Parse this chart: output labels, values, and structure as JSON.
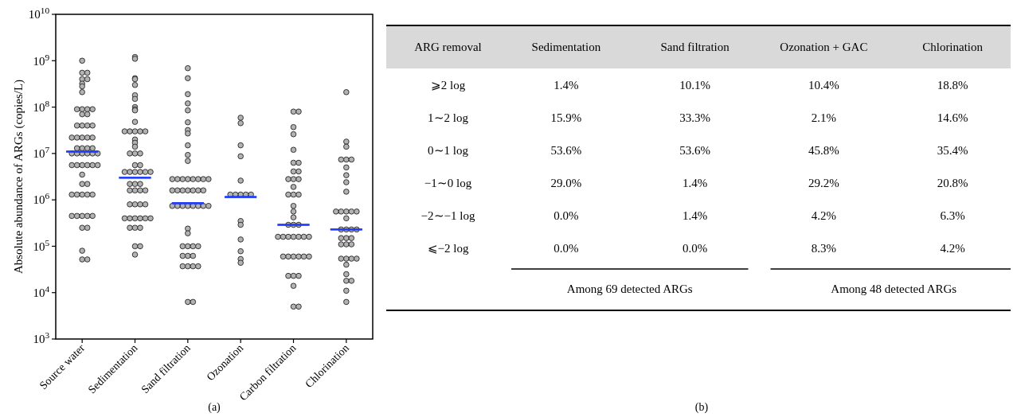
{
  "chart_data": [
    {
      "type": "scatter",
      "title": "(a)",
      "ylabel": "Absolute abundance of ARGs (copies/L)",
      "log": "y",
      "marker": "circle",
      "categories": [
        "Source water",
        "Sedimentation",
        "Sand filtration",
        "Ozonation",
        "Carbon filtration",
        "Chlorination"
      ],
      "ylim": [
        1000,
        10000000000
      ],
      "yticks": [
        {
          "value": 1000,
          "label": "10$^{3}$"
        },
        {
          "value": 10000,
          "label": "10$^{4}$"
        },
        {
          "value": 100000,
          "label": "10$^{5}$"
        },
        {
          "value": 1000000,
          "label": "10$^{6}$"
        },
        {
          "value": 10000000,
          "label": "10$^{7}$"
        },
        {
          "value": 100000000,
          "label": "10$^{8}$"
        },
        {
          "value": 1000000000,
          "label": "10$^{9}$"
        },
        {
          "value": 10000000000,
          "label": "10$^{10}$"
        }
      ],
      "series": [
        {
          "type": "scatter",
          "color": "#b3b3b3",
          "x": [
            "Source water",
            "Source water",
            "Source water",
            "Source water",
            "Source water",
            "Source water",
            "Source water",
            "Source water",
            "Source water",
            "Source water",
            "Source water",
            "Source water",
            "Source water",
            "Source water",
            "Source water",
            "Source water",
            "Source water",
            "Source water",
            "Source water",
            "Source water",
            "Source water",
            "Source water",
            "Source water",
            "Source water",
            "Source water",
            "Source water",
            "Source water",
            "Source water",
            "Source water",
            "Source water",
            "Source water",
            "Source water",
            "Source water",
            "Source water",
            "Source water",
            "Source water",
            "Source water",
            "Source water",
            "Source water",
            "Source water",
            "Source water",
            "Source water",
            "Source water",
            "Source water",
            "Source water",
            "Source water",
            "Source water",
            "Source water",
            "Source water",
            "Source water",
            "Source water",
            "Source water",
            "Source water",
            "Source water",
            "Source water",
            "Source water",
            "Source water",
            "Sedimentation",
            "Sedimentation",
            "Sedimentation",
            "Sedimentation",
            "Sedimentation",
            "Sedimentation",
            "Sedimentation",
            "Sedimentation",
            "Sedimentation",
            "Sedimentation",
            "Sedimentation",
            "Sedimentation",
            "Sedimentation",
            "Sedimentation",
            "Sedimentation",
            "Sedimentation",
            "Sedimentation",
            "Sedimentation",
            "Sedimentation",
            "Sedimentation",
            "Sedimentation",
            "Sedimentation",
            "Sedimentation",
            "Sedimentation",
            "Sedimentation",
            "Sedimentation",
            "Sedimentation",
            "Sedimentation",
            "Sedimentation",
            "Sedimentation",
            "Sedimentation",
            "Sedimentation",
            "Sedimentation",
            "Sedimentation",
            "Sedimentation",
            "Sedimentation",
            "Sedimentation",
            "Sedimentation",
            "Sedimentation",
            "Sedimentation",
            "Sedimentation",
            "Sedimentation",
            "Sedimentation",
            "Sedimentation",
            "Sedimentation",
            "Sedimentation",
            "Sedimentation",
            "Sedimentation",
            "Sedimentation",
            "Sedimentation",
            "Sedimentation",
            "Sedimentation",
            "Sedimentation",
            "Sand filtration",
            "Sand filtration",
            "Sand filtration",
            "Sand filtration",
            "Sand filtration",
            "Sand filtration",
            "Sand filtration",
            "Sand filtration",
            "Sand filtration",
            "Sand filtration",
            "Sand filtration",
            "Sand filtration",
            "Sand filtration",
            "Sand filtration",
            "Sand filtration",
            "Sand filtration",
            "Sand filtration",
            "Sand filtration",
            "Sand filtration",
            "Sand filtration",
            "Sand filtration",
            "Sand filtration",
            "Sand filtration",
            "Sand filtration",
            "Sand filtration",
            "Sand filtration",
            "Sand filtration",
            "Sand filtration",
            "Sand filtration",
            "Sand filtration",
            "Sand filtration",
            "Sand filtration",
            "Sand filtration",
            "Sand filtration",
            "Sand filtration",
            "Sand filtration",
            "Sand filtration",
            "Sand filtration",
            "Sand filtration",
            "Sand filtration",
            "Sand filtration",
            "Sand filtration",
            "Sand filtration",
            "Sand filtration",
            "Sand filtration",
            "Sand filtration",
            "Sand filtration",
            "Sand filtration",
            "Sand filtration",
            "Ozonation",
            "Ozonation",
            "Ozonation",
            "Ozonation",
            "Ozonation",
            "Ozonation",
            "Ozonation",
            "Ozonation",
            "Ozonation",
            "Ozonation",
            "Ozonation",
            "Ozonation",
            "Ozonation",
            "Ozonation",
            "Ozonation",
            "Ozonation",
            "Carbon filtration",
            "Carbon filtration",
            "Carbon filtration",
            "Carbon filtration",
            "Carbon filtration",
            "Carbon filtration",
            "Carbon filtration",
            "Carbon filtration",
            "Carbon filtration",
            "Carbon filtration",
            "Carbon filtration",
            "Carbon filtration",
            "Carbon filtration",
            "Carbon filtration",
            "Carbon filtration",
            "Carbon filtration",
            "Carbon filtration",
            "Carbon filtration",
            "Carbon filtration",
            "Carbon filtration",
            "Carbon filtration",
            "Carbon filtration",
            "Carbon filtration",
            "Carbon filtration",
            "Carbon filtration",
            "Carbon filtration",
            "Carbon filtration",
            "Carbon filtration",
            "Carbon filtration",
            "Carbon filtration",
            "Carbon filtration",
            "Carbon filtration",
            "Carbon filtration",
            "Carbon filtration",
            "Carbon filtration",
            "Carbon filtration",
            "Carbon filtration",
            "Carbon filtration",
            "Carbon filtration",
            "Carbon filtration",
            "Carbon filtration",
            "Chlorination",
            "Chlorination",
            "Chlorination",
            "Chlorination",
            "Chlorination",
            "Chlorination",
            "Chlorination",
            "Chlorination",
            "Chlorination",
            "Chlorination",
            "Chlorination",
            "Chlorination",
            "Chlorination",
            "Chlorination",
            "Chlorination",
            "Chlorination",
            "Chlorination",
            "Chlorination",
            "Chlorination",
            "Chlorination",
            "Chlorination",
            "Chlorination",
            "Chlorination",
            "Chlorination",
            "Chlorination",
            "Chlorination",
            "Chlorination",
            "Chlorination",
            "Chlorination",
            "Chlorination",
            "Chlorination",
            "Chlorination",
            "Chlorination",
            "Chlorination",
            "Chlorination",
            "Chlorination"
          ],
          "values": [
            1000000000.0,
            550000000.0,
            550000000.0,
            400000000.0,
            400000000.0,
            320000000.0,
            280000000.0,
            210000000.0,
            90000000.0,
            90000000.0,
            90000000.0,
            90000000.0,
            70000000.0,
            70000000.0,
            40000000.0,
            40000000.0,
            40000000.0,
            40000000.0,
            22000000.0,
            22000000.0,
            22000000.0,
            22000000.0,
            22000000.0,
            13000000.0,
            13000000.0,
            13000000.0,
            13000000.0,
            10000000.0,
            10000000.0,
            10000000.0,
            10000000.0,
            10000000.0,
            10000000.0,
            5600000.0,
            5600000.0,
            5600000.0,
            5600000.0,
            5600000.0,
            5600000.0,
            3500000.0,
            2200000.0,
            2200000.0,
            1300000.0,
            1300000.0,
            1300000.0,
            1300000.0,
            1300000.0,
            450000.0,
            450000.0,
            450000.0,
            450000.0,
            450000.0,
            250000.0,
            250000.0,
            80000.0,
            52000.0,
            52000.0,
            1200000000.0,
            1100000000.0,
            420000000.0,
            400000000.0,
            300000000.0,
            180000000.0,
            150000000.0,
            100000000.0,
            90000000.0,
            85000000.0,
            48000000.0,
            30000000.0,
            30000000.0,
            30000000.0,
            30000000.0,
            30000000.0,
            20000000.0,
            17000000.0,
            14000000.0,
            10000000.0,
            10000000.0,
            10000000.0,
            5600000.0,
            5600000.0,
            4000000.0,
            4000000.0,
            4000000.0,
            4000000.0,
            4000000.0,
            4000000.0,
            2200000.0,
            2200000.0,
            2200000.0,
            1600000.0,
            1600000.0,
            1600000.0,
            1600000.0,
            800000.0,
            800000.0,
            800000.0,
            800000.0,
            400000.0,
            400000.0,
            400000.0,
            400000.0,
            400000.0,
            400000.0,
            250000.0,
            250000.0,
            250000.0,
            100000.0,
            100000.0,
            66000.0,
            690000000.0,
            420000000.0,
            190000000.0,
            120000000.0,
            85000000.0,
            47000000.0,
            32000000.0,
            27000000.0,
            15000000.0,
            9300000.0,
            6900000.0,
            2800000.0,
            2800000.0,
            2800000.0,
            2800000.0,
            2800000.0,
            2800000.0,
            2800000.0,
            2800000.0,
            1600000.0,
            1600000.0,
            1600000.0,
            1600000.0,
            1600000.0,
            1600000.0,
            1600000.0,
            740000.0,
            740000.0,
            740000.0,
            740000.0,
            740000.0,
            740000.0,
            740000.0,
            740000.0,
            240000.0,
            190000.0,
            100000.0,
            100000.0,
            100000.0,
            100000.0,
            62000.0,
            62000.0,
            62000.0,
            37000.0,
            37000.0,
            37000.0,
            37000.0,
            6300.0,
            6300.0,
            59000000.0,
            45000000.0,
            15000000.0,
            8700000.0,
            2600000.0,
            1300000.0,
            1300000.0,
            1300000.0,
            1300000.0,
            1300000.0,
            350000.0,
            290000.0,
            140000.0,
            78000.0,
            53000.0,
            44000.0,
            80000000.0,
            80000000.0,
            37000000.0,
            26000000.0,
            12000000.0,
            6300000.0,
            6300000.0,
            4100000.0,
            4100000.0,
            2800000.0,
            2800000.0,
            2800000.0,
            1900000.0,
            1300000.0,
            1300000.0,
            1300000.0,
            740000.0,
            560000.0,
            420000.0,
            290000.0,
            290000.0,
            290000.0,
            160000.0,
            160000.0,
            160000.0,
            160000.0,
            160000.0,
            160000.0,
            160000.0,
            60000.0,
            60000.0,
            60000.0,
            60000.0,
            60000.0,
            60000.0,
            23000.0,
            23000.0,
            23000.0,
            14000.0,
            5000.0,
            5000.0,
            210000000.0,
            18000000.0,
            14000000.0,
            7400000.0,
            7400000.0,
            7400000.0,
            5000000.0,
            3400000.0,
            2400000.0,
            1500000.0,
            560000.0,
            560000.0,
            560000.0,
            560000.0,
            560000.0,
            400000.0,
            230000.0,
            230000.0,
            230000.0,
            230000.0,
            150000.0,
            150000.0,
            150000.0,
            110000.0,
            110000.0,
            110000.0,
            54000.0,
            54000.0,
            54000.0,
            54000.0,
            40000.0,
            25000.0,
            18000.0,
            18000.0,
            11000.0,
            6300.0
          ]
        },
        {
          "type": "box",
          "color": "#1f3cff",
          "boxes": [
            {
              "low": 11000000.0,
              "q1": 11000000.0,
              "median": 11000000.0,
              "q3": 11000000.0,
              "high": 11000000.0
            },
            {
              "low": 3000000.0,
              "q1": 3000000.0,
              "median": 3000000.0,
              "q3": 3000000.0,
              "high": 3000000.0
            },
            {
              "low": 850000.0,
              "q1": 850000.0,
              "median": 850000.0,
              "q3": 850000.0,
              "high": 850000.0
            },
            {
              "low": 1150000.0,
              "q1": 1150000.0,
              "median": 1150000.0,
              "q3": 1150000.0,
              "high": 1150000.0
            },
            {
              "low": 290000.0,
              "q1": 290000.0,
              "median": 290000.0,
              "q3": 290000.0,
              "high": 290000.0
            },
            {
              "low": 230000.0,
              "q1": 230000.0,
              "median": 230000.0,
              "q3": 230000.0,
              "high": 230000.0
            }
          ]
        }
      ]
    },
    {
      "type": "other",
      "title": "(b)",
      "ylabel": "ARG removal",
      "categories": [
        "Sedimentation",
        "Sand filtration",
        "Ozonation + GAC",
        "Chlorination"
      ],
      "y_categories": [
        "⩾2 log",
        "1∼2 log",
        "0∼1 log",
        "−1∼0 log",
        "−2∼−1 log",
        "⩽−2 log"
      ],
      "cell_labels": [
        [
          "1.4%",
          "10.1%",
          "10.4%",
          "18.8%"
        ],
        [
          "15.9%",
          "33.3%",
          "2.1%",
          "14.6%"
        ],
        [
          "53.6%",
          "53.6%",
          "45.8%",
          "35.4%"
        ],
        [
          "29.0%",
          "1.4%",
          "29.2%",
          "20.8%"
        ],
        [
          "0.0%",
          "1.4%",
          "4.2%",
          "6.3%"
        ],
        [
          "0.0%",
          "0.0%",
          "8.3%",
          "4.2%"
        ]
      ],
      "annotations": [
        "Among 69 detected ARGs",
        "Among 48 detected ARGs"
      ]
    }
  ]
}
